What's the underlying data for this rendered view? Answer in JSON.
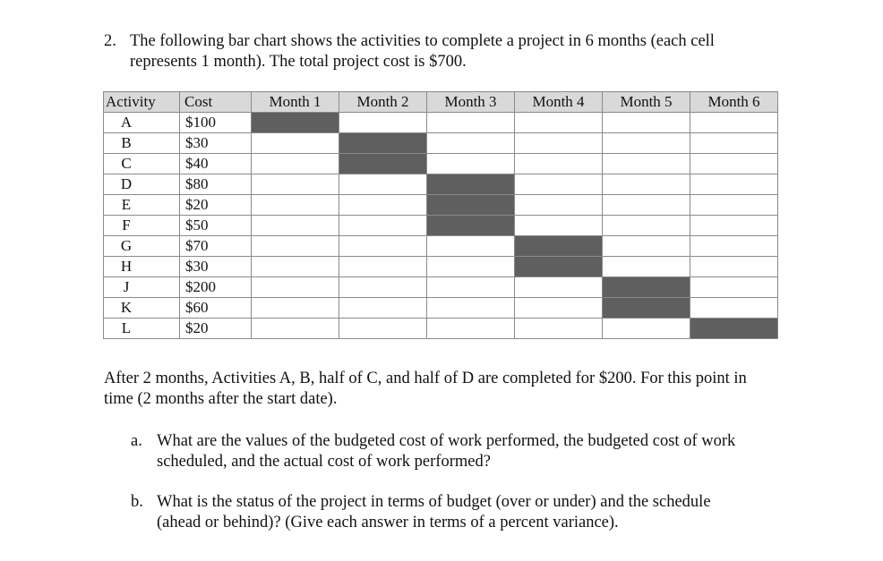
{
  "question": {
    "number": "2.",
    "line1": "The following bar chart shows the activities to complete a project in 6 months (each cell",
    "line2": "represents 1 month). The total project cost is $700."
  },
  "table": {
    "headers": [
      "Activity",
      "Cost",
      "Month 1",
      "Month 2",
      "Month 3",
      "Month 4",
      "Month 5",
      "Month 6"
    ],
    "rows": [
      {
        "activity": "A",
        "cost": "$100",
        "months": [
          1
        ]
      },
      {
        "activity": "B",
        "cost": "$30",
        "months": [
          2
        ]
      },
      {
        "activity": "C",
        "cost": "$40",
        "months": [
          2
        ]
      },
      {
        "activity": "D",
        "cost": "$80",
        "months": [
          3
        ]
      },
      {
        "activity": "E",
        "cost": "$20",
        "months": [
          3
        ]
      },
      {
        "activity": "F",
        "cost": "$50",
        "months": [
          3
        ]
      },
      {
        "activity": "G",
        "cost": "$70",
        "months": [
          4
        ]
      },
      {
        "activity": "H",
        "cost": "$30",
        "months": [
          4
        ]
      },
      {
        "activity": "J",
        "cost": "$200",
        "months": [
          5
        ]
      },
      {
        "activity": "K",
        "cost": "$60",
        "months": [
          5
        ]
      },
      {
        "activity": "L",
        "cost": "$20",
        "months": [
          6
        ]
      }
    ],
    "fill_color": "#5f5f5f",
    "header_color": "#d9d9d9"
  },
  "after": {
    "line1": "After 2 months, Activities A, B, half of C, and half of D are completed for $200. For this point in",
    "line2": "time (2 months after the start date)."
  },
  "subquestions": [
    {
      "marker": "a.",
      "line1": "What are the values of the budgeted cost of work performed, the budgeted cost of work",
      "line2": "scheduled, and the actual cost of work performed?"
    },
    {
      "marker": "b.",
      "line1": "What is the status of the project in terms of budget (over or under) and the schedule",
      "line2": "(ahead or behind)? (Give each answer in terms of a percent variance)."
    }
  ]
}
